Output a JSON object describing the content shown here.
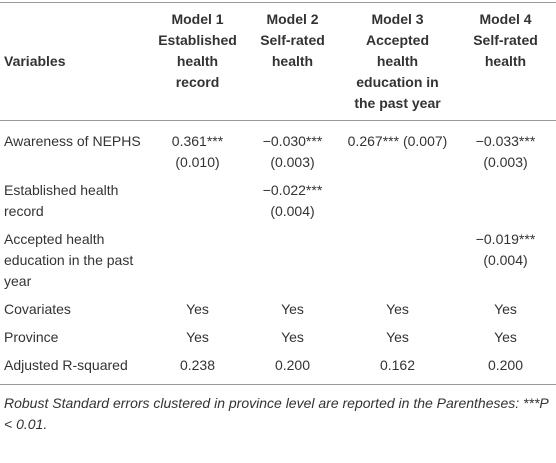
{
  "table": {
    "header": [
      "Variables",
      "Model 1\nEstablished health record",
      "Model 2\nSelf-rated health",
      "Model 3\nAccepted health education in the past year",
      "Model 4\nSelf-rated health"
    ],
    "rows": [
      [
        "Awareness of NEPHS",
        "0.361*** (0.010)",
        "−0.030*** (0.003)",
        "0.267*** (0.007)",
        "−0.033*** (0.003)"
      ],
      [
        "Established health record",
        null,
        "−0.022*** (0.004)",
        null,
        null
      ],
      [
        "Accepted health education in the past year",
        null,
        null,
        null,
        "−0.019*** (0.004)"
      ],
      [
        "Covariates",
        "Yes",
        "Yes",
        "Yes",
        "Yes"
      ],
      [
        "Province",
        "Yes",
        "Yes",
        "Yes",
        "Yes"
      ],
      [
        "Adjusted R-squared",
        "0.238",
        "0.200",
        "0.162",
        "0.200"
      ]
    ]
  },
  "footnote": "Robust Standard errors clustered in province level are reported in the Parentheses: ***P < 0.01."
}
